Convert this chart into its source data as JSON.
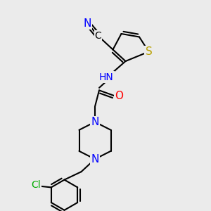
{
  "background_color": "#ebebeb",
  "atoms": {
    "S": {
      "color": "#b8a000",
      "fontsize": 10
    },
    "N": {
      "color": "#0000ff",
      "fontsize": 10
    },
    "O": {
      "color": "#ff0000",
      "fontsize": 10
    },
    "C": {
      "color": "#000000",
      "fontsize": 10
    },
    "Cl": {
      "color": "#00aa00",
      "fontsize": 10
    },
    "H": {
      "color": "#408080",
      "fontsize": 10
    }
  },
  "bond_color": "#000000",
  "bond_width": 1.5
}
